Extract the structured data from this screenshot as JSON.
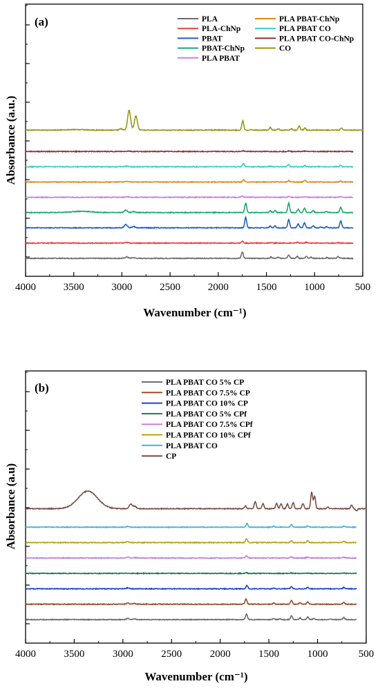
{
  "chart_data": [
    {
      "type": "line",
      "panel_label": "(a)",
      "xlabel": "Wavenumber (cm⁻¹)",
      "ylabel": "Absorbance (a.u.)",
      "xlim": [
        4000,
        500
      ],
      "x_reversed": true,
      "x_ticks": [
        "4000",
        "3500",
        "3000",
        "2500",
        "2000",
        "1500",
        "1000",
        "500"
      ],
      "y_tick_labels": false,
      "legend_position": "top-right",
      "series": [
        {
          "name": "PLA",
          "color": "#6b6b6b",
          "offset": 0,
          "peaks": [
            [
              2950,
              0.7
            ],
            [
              2880,
              0.35
            ],
            [
              1750,
              3.2
            ],
            [
              1450,
              0.6
            ],
            [
              1380,
              0.5
            ],
            [
              1268,
              1.6
            ],
            [
              1180,
              0.9
            ],
            [
              1085,
              1.0
            ],
            [
              1040,
              0.6
            ],
            [
              870,
              0.4
            ],
            [
              755,
              0.9
            ]
          ]
        },
        {
          "name": "PLA-ChNp",
          "color": "#ef3b3b",
          "offset": 1,
          "peaks": [
            [
              2950,
              0.3
            ],
            [
              1750,
              0.9
            ],
            [
              1450,
              0.2
            ],
            [
              1180,
              0.4
            ],
            [
              1085,
              0.4
            ],
            [
              755,
              0.2
            ]
          ]
        },
        {
          "name": "PBAT",
          "color": "#1f5fc4",
          "offset": 2,
          "peaks": [
            [
              2960,
              1.6
            ],
            [
              2880,
              0.6
            ],
            [
              1715,
              5.0
            ],
            [
              1460,
              0.8
            ],
            [
              1410,
              0.9
            ],
            [
              1268,
              4.0
            ],
            [
              1170,
              1.8
            ],
            [
              1105,
              2.4
            ],
            [
              1015,
              1.0
            ],
            [
              935,
              0.5
            ],
            [
              875,
              0.6
            ],
            [
              728,
              3.4
            ]
          ]
        },
        {
          "name": "PBAT-ChNp",
          "color": "#1aa86a",
          "offset": 3,
          "peaks": [
            [
              3420,
              0.6
            ],
            [
              2960,
              1.2
            ],
            [
              2880,
              0.5
            ],
            [
              1715,
              4.6
            ],
            [
              1460,
              0.9
            ],
            [
              1410,
              1.0
            ],
            [
              1268,
              4.6
            ],
            [
              1170,
              1.6
            ],
            [
              1105,
              2.0
            ],
            [
              1015,
              0.9
            ],
            [
              875,
              0.5
            ],
            [
              728,
              2.6
            ]
          ]
        },
        {
          "name": "PLA PBAT",
          "color": "#c77de0",
          "offset": 4,
          "peaks": [
            [
              2950,
              0.25
            ],
            [
              1750,
              0.6
            ],
            [
              1268,
              0.4
            ],
            [
              1100,
              0.3
            ],
            [
              730,
              0.3
            ]
          ]
        },
        {
          "name": "PLA PBAT-ChNp",
          "color": "#e08a12",
          "offset": 5,
          "peaks": [
            [
              2950,
              0.3
            ],
            [
              1735,
              1.1
            ],
            [
              1268,
              0.7
            ],
            [
              1100,
              0.8
            ],
            [
              730,
              0.5
            ]
          ]
        },
        {
          "name": "PLA PBAT CO",
          "color": "#2fd0c8",
          "offset": 6,
          "peaks": [
            [
              2950,
              0.3
            ],
            [
              1740,
              1.6
            ],
            [
              1460,
              0.3
            ],
            [
              1270,
              1.1
            ],
            [
              1100,
              0.6
            ],
            [
              730,
              0.7
            ]
          ]
        },
        {
          "name": "PLA PBAT CO-ChNp",
          "color": "#8b2f35",
          "offset": 7,
          "peaks": [
            [
              2930,
              0.2
            ],
            [
              1740,
              0.35
            ],
            [
              1270,
              0.25
            ],
            [
              1100,
              0.2
            ]
          ]
        },
        {
          "name": "CO",
          "color": "#9c9314",
          "offset": 8.4,
          "peaks": [
            [
              3470,
              0.22
            ],
            [
              3010,
              0.7
            ],
            [
              2925,
              9.5
            ],
            [
              2855,
              6.8
            ],
            [
              1745,
              4.5
            ],
            [
              1655,
              0.2
            ],
            [
              1460,
              1.3
            ],
            [
              1375,
              0.6
            ],
            [
              1240,
              0.7
            ],
            [
              1160,
              2.0
            ],
            [
              1100,
              1.0
            ],
            [
              722,
              0.9
            ]
          ]
        }
      ]
    },
    {
      "type": "line",
      "panel_label": "(b)",
      "xlabel": "Wavenumber (cm⁻¹)",
      "ylabel": "Absorbance (a.u)",
      "xlim": [
        4000,
        500
      ],
      "x_reversed": true,
      "x_ticks": [
        "4000",
        "3500",
        "3000",
        "2500",
        "2000",
        "1500",
        "1000",
        "500"
      ],
      "y_tick_labels": false,
      "legend_position": "top-left",
      "series": [
        {
          "name": "PLA PBAT CO 5% CP",
          "color": "#6b6b6b",
          "offset": 0,
          "peaks": [
            [
              2950,
              0.5
            ],
            [
              2880,
              0.3
            ],
            [
              1730,
              2.6
            ],
            [
              1450,
              0.5
            ],
            [
              1390,
              0.4
            ],
            [
              1268,
              1.8
            ],
            [
              1180,
              0.8
            ],
            [
              1100,
              1.2
            ],
            [
              1040,
              0.6
            ],
            [
              870,
              0.3
            ],
            [
              730,
              1.0
            ]
          ]
        },
        {
          "name": "PLA PBAT CO 7.5% CP",
          "color": "#9b4a2e",
          "offset": 1,
          "peaks": [
            [
              2950,
              0.5
            ],
            [
              2880,
              0.3
            ],
            [
              1735,
              2.6
            ],
            [
              1450,
              0.5
            ],
            [
              1268,
              1.8
            ],
            [
              1180,
              0.7
            ],
            [
              1100,
              1.1
            ],
            [
              730,
              0.8
            ]
          ]
        },
        {
          "name": "PLA PBAT CO 10% CP",
          "color": "#1f3fd0",
          "offset": 2,
          "peaks": [
            [
              2950,
              0.4
            ],
            [
              1725,
              1.6
            ],
            [
              1450,
              0.4
            ],
            [
              1268,
              1.0
            ],
            [
              1100,
              0.7
            ],
            [
              730,
              0.6
            ]
          ]
        },
        {
          "name": "PLA PBAT CO 5% CPf",
          "color": "#1a7a55",
          "offset": 3,
          "peaks": [
            [
              2950,
              0.1
            ],
            [
              1730,
              0.3
            ],
            [
              1268,
              0.2
            ],
            [
              1100,
              0.15
            ],
            [
              730,
              0.15
            ]
          ]
        },
        {
          "name": "PLA PBAT CO 7.5% CPf",
          "color": "#c77de0",
          "offset": 4,
          "peaks": [
            [
              2950,
              0.4
            ],
            [
              2880,
              0.2
            ],
            [
              1730,
              1.0
            ],
            [
              1268,
              0.6
            ],
            [
              1100,
              0.5
            ],
            [
              730,
              0.4
            ]
          ]
        },
        {
          "name": "PLA PBAT CO 10% CPf",
          "color": "#b8a20c",
          "offset": 5,
          "peaks": [
            [
              2950,
              0.4
            ],
            [
              1730,
              1.8
            ],
            [
              1450,
              0.3
            ],
            [
              1268,
              1.0
            ],
            [
              1100,
              0.8
            ],
            [
              730,
              0.6
            ]
          ]
        },
        {
          "name": "PLA PBAT CO",
          "color": "#3fb4d6",
          "offset": 6,
          "peaks": [
            [
              2950,
              0.3
            ],
            [
              1725,
              1.8
            ],
            [
              1450,
              0.4
            ],
            [
              1268,
              1.2
            ],
            [
              1100,
              0.7
            ],
            [
              730,
              0.5
            ]
          ]
        },
        {
          "name": "CP",
          "color": "#7a4f47",
          "offset": 7.2,
          "peaks": [
            [
              3360,
              8.5
            ],
            [
              2920,
              2.2
            ],
            [
              2880,
              1.2
            ],
            [
              1740,
              1.4
            ],
            [
              1640,
              3.5
            ],
            [
              1560,
              2.4
            ],
            [
              1420,
              2.6
            ],
            [
              1375,
              2.4
            ],
            [
              1310,
              2.3
            ],
            [
              1250,
              3.0
            ],
            [
              1150,
              2.5
            ],
            [
              1060,
              8.0
            ],
            [
              1030,
              6.0
            ],
            [
              895,
              0.8
            ],
            [
              650,
              1.8
            ],
            [
              600,
              -1.0
            ]
          ]
        }
      ]
    }
  ]
}
